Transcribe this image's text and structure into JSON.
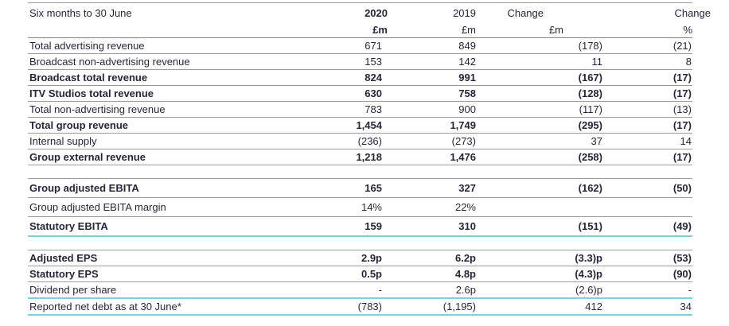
{
  "colors": {
    "text": "#262638",
    "rule_gray": "#9c9c9c",
    "header_rule": "#858585",
    "rule_teal": "#7dd2d9",
    "background": "#ffffff"
  },
  "table": {
    "period_header": "Six months to 30 June",
    "columns": [
      {
        "id": "y2020",
        "label": "2020",
        "unit": "£m",
        "bold": true
      },
      {
        "id": "y2019",
        "label": "2019",
        "unit": "£m",
        "bold": false
      },
      {
        "id": "change_m",
        "label": "Change",
        "unit": "£m",
        "bold": false
      },
      {
        "id": "change_pct",
        "label": "Change",
        "unit": "%",
        "bold": false
      }
    ],
    "sections": [
      {
        "name": "revenue",
        "rows": [
          {
            "label": "Total advertising revenue",
            "values": [
              "671",
              "849",
              "(178)",
              "(21)"
            ],
            "bold": false,
            "rule": "gray"
          },
          {
            "label": "Broadcast non-advertising revenue",
            "values": [
              "153",
              "142",
              "11",
              "8"
            ],
            "bold": false,
            "rule": "gray"
          },
          {
            "label": "Broadcast total revenue",
            "values": [
              "824",
              "991",
              "(167)",
              "(17)"
            ],
            "bold": true,
            "rule": "gray"
          },
          {
            "label": "ITV Studios total revenue",
            "values": [
              "630",
              "758",
              "(128)",
              "(17)"
            ],
            "bold": true,
            "rule": "gray"
          },
          {
            "label": "Total non-advertising revenue",
            "values": [
              "783",
              "900",
              "(117)",
              "(13)"
            ],
            "bold": false,
            "rule": "gray"
          },
          {
            "label": "Total group revenue",
            "values": [
              "1,454",
              "1,749",
              "(295)",
              "(17)"
            ],
            "bold": true,
            "rule": "gray"
          },
          {
            "label": "Internal supply",
            "values": [
              "(236)",
              "(273)",
              "37",
              "14"
            ],
            "bold": false,
            "rule": "gray"
          },
          {
            "label": "Group external revenue",
            "values": [
              "1,218",
              "1,476",
              "(258)",
              "(17)"
            ],
            "bold": true,
            "rule": "gray"
          }
        ]
      },
      {
        "name": "ebita",
        "rows": [
          {
            "label": "Group adjusted EBITA",
            "values": [
              "165",
              "327",
              "(162)",
              "(50)"
            ],
            "bold": true,
            "rule": "gray"
          },
          {
            "label": "Group adjusted EBITA margin",
            "values": [
              "14%",
              "22%",
              "",
              ""
            ],
            "bold": false,
            "rule": "gray"
          },
          {
            "label": "Statutory EBITA",
            "values": [
              "159",
              "310",
              "(151)",
              "(49)"
            ],
            "bold": true,
            "rule": "teal"
          }
        ]
      },
      {
        "name": "per-share",
        "rows": [
          {
            "label": "Adjusted EPS",
            "values": [
              "2.9p",
              "6.2p",
              "(3.3)p",
              "(53)"
            ],
            "bold": true,
            "rule": "gray"
          },
          {
            "label": "Statutory EPS",
            "values": [
              "0.5p",
              "4.8p",
              "(4.3)p",
              "(90)"
            ],
            "bold": true,
            "rule": "gray"
          },
          {
            "label": "Dividend per share",
            "values": [
              "-",
              "2.6p",
              "(2.6)p",
              "-"
            ],
            "bold": false,
            "rule": "teal"
          },
          {
            "label": "Reported net debt as at 30 June*",
            "values": [
              "(783)",
              "(1,195)",
              "412",
              "34"
            ],
            "bold": false,
            "rule": "teal"
          }
        ]
      }
    ]
  }
}
